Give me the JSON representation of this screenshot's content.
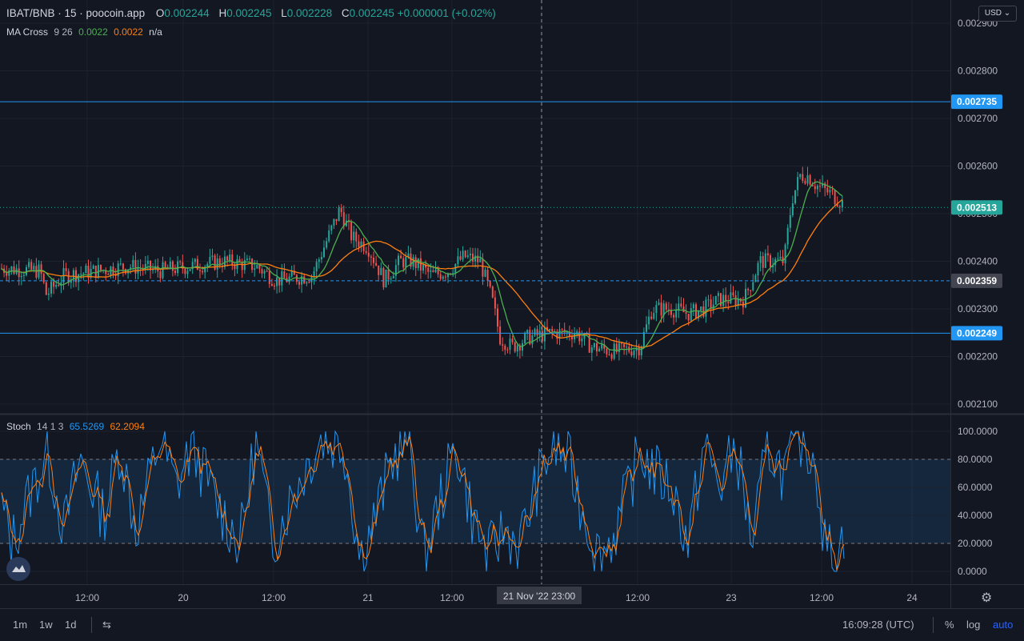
{
  "header": {
    "symbol": "IBAT/BNB · 15 · poocoin.app",
    "o_label": "O",
    "o_value": "0.002244",
    "h_label": "H",
    "h_value": "0.002245",
    "l_label": "L",
    "l_value": "0.002228",
    "c_label": "C",
    "c_value": "0.002245 +0.000001 (+0.02%)"
  },
  "ma_legend": {
    "name": "MA Cross",
    "params": "9 26",
    "fast_value": "0.0022",
    "slow_value": "0.0022",
    "extra": "n/a"
  },
  "stoch_legend": {
    "name": "Stoch",
    "params": "14 1 3",
    "k_value": "65.5269",
    "d_value": "62.2094"
  },
  "currency_button": "USD",
  "crosshair_label": "21 Nov '22   23:00",
  "bottom_bar": {
    "ranges": [
      "1m",
      "1w",
      "1d"
    ],
    "time": "16:09:28 (UTC)",
    "percent": "%",
    "log": "log",
    "auto": "auto"
  },
  "colors": {
    "background": "#131722",
    "up": "#26a69a",
    "down": "#ef5350",
    "ma_fast": "#4caf50",
    "ma_slow": "#ff7f0e",
    "hline": "#2196f3",
    "stoch_k": "#2196f3",
    "stoch_d": "#ff7f0e",
    "grid": "#1e222d"
  },
  "chart_data": [
    {
      "type": "candlestick",
      "title": "IBAT/BNB",
      "interval": "15",
      "ylim": [
        0.00208,
        0.0029
      ],
      "y_ticks": [
        "0.002100",
        "0.002200",
        "0.002300",
        "0.002400",
        "0.002500",
        "0.002600",
        "0.002700",
        "0.002800",
        "0.002900"
      ],
      "x_ticks": [
        "12:00",
        "20",
        "12:00",
        "21",
        "12:00",
        "12:00",
        "23",
        "12:00",
        "24"
      ],
      "price_anchors": [
        [
          0,
          0.002385
        ],
        [
          50,
          0.00238
        ],
        [
          58,
          0.00233
        ],
        [
          80,
          0.00237
        ],
        [
          120,
          0.00238
        ],
        [
          160,
          0.00239
        ],
        [
          200,
          0.00238
        ],
        [
          240,
          0.00239
        ],
        [
          280,
          0.0024
        ],
        [
          320,
          0.00239
        ],
        [
          345,
          0.00236
        ],
        [
          390,
          0.00237
        ],
        [
          410,
          0.00245
        ],
        [
          425,
          0.00251
        ],
        [
          440,
          0.00245
        ],
        [
          460,
          0.00243
        ],
        [
          480,
          0.00236
        ],
        [
          500,
          0.0024
        ],
        [
          515,
          0.0024
        ],
        [
          540,
          0.00237
        ],
        [
          560,
          0.00238
        ],
        [
          580,
          0.00241
        ],
        [
          600,
          0.0024
        ],
        [
          615,
          0.00232
        ],
        [
          625,
          0.00224
        ],
        [
          640,
          0.00222
        ],
        [
          660,
          0.00224
        ],
        [
          690,
          0.00225
        ],
        [
          720,
          0.00225
        ],
        [
          740,
          0.00222
        ],
        [
          770,
          0.00221
        ],
        [
          800,
          0.00222
        ],
        [
          815,
          0.0023
        ],
        [
          840,
          0.0023
        ],
        [
          860,
          0.00229
        ],
        [
          880,
          0.0023
        ],
        [
          900,
          0.00232
        ],
        [
          930,
          0.00232
        ],
        [
          940,
          0.00236
        ],
        [
          950,
          0.0024
        ],
        [
          980,
          0.0024
        ],
        [
          990,
          0.00253
        ],
        [
          1000,
          0.00258
        ],
        [
          1010,
          0.00258
        ],
        [
          1020,
          0.00256
        ],
        [
          1040,
          0.00254
        ],
        [
          1055,
          0.00252
        ]
      ],
      "horizontal_lines": [
        {
          "value": 0.002735,
          "label": "0.002735",
          "style": "solid"
        },
        {
          "value": 0.002359,
          "label": "0.002359",
          "style": "dashed"
        },
        {
          "value": 0.002249,
          "label": "0.002249",
          "style": "solid"
        },
        {
          "value": 0.002513,
          "label": "0.002513",
          "style": "dotted"
        }
      ],
      "series": [
        {
          "name": "MA Cross 9",
          "color": "#4caf50"
        },
        {
          "name": "MA Cross 26",
          "color": "#ff7f0e"
        }
      ]
    },
    {
      "type": "line",
      "title": "Stoch 14 1 3",
      "ylim": [
        -5,
        105
      ],
      "y_ticks": [
        "0.0000",
        "20.0000",
        "40.0000",
        "60.0000",
        "80.0000",
        "100.0000"
      ],
      "bands": [
        20,
        80
      ],
      "k_anchors": [
        [
          0,
          50
        ],
        [
          15,
          20
        ],
        [
          40,
          60
        ],
        [
          60,
          85
        ],
        [
          80,
          30
        ],
        [
          100,
          80
        ],
        [
          130,
          40
        ],
        [
          150,
          90
        ],
        [
          170,
          30
        ],
        [
          200,
          95
        ],
        [
          220,
          60
        ],
        [
          240,
          90
        ],
        [
          270,
          50
        ],
        [
          300,
          20
        ],
        [
          320,
          95
        ],
        [
          340,
          20
        ],
        [
          370,
          60
        ],
        [
          400,
          95
        ],
        [
          430,
          90
        ],
        [
          450,
          10
        ],
        [
          470,
          40
        ],
        [
          490,
          80
        ],
        [
          510,
          95
        ],
        [
          530,
          10
        ],
        [
          550,
          50
        ],
        [
          570,
          90
        ],
        [
          590,
          40
        ],
        [
          610,
          10
        ],
        [
          630,
          30
        ],
        [
          650,
          20
        ],
        [
          670,
          60
        ],
        [
          690,
          90
        ],
        [
          710,
          80
        ],
        [
          730,
          40
        ],
        [
          750,
          10
        ],
        [
          770,
          30
        ],
        [
          800,
          85
        ],
        [
          820,
          70
        ],
        [
          840,
          60
        ],
        [
          860,
          20
        ],
        [
          880,
          90
        ],
        [
          900,
          60
        ],
        [
          920,
          90
        ],
        [
          940,
          20
        ],
        [
          960,
          90
        ],
        [
          980,
          70
        ],
        [
          1000,
          95
        ],
        [
          1020,
          80
        ],
        [
          1030,
          20
        ],
        [
          1045,
          10
        ],
        [
          1055,
          25
        ]
      ],
      "series": [
        {
          "name": "%K",
          "color": "#2196f3"
        },
        {
          "name": "%D",
          "color": "#ff7f0e"
        }
      ]
    }
  ]
}
